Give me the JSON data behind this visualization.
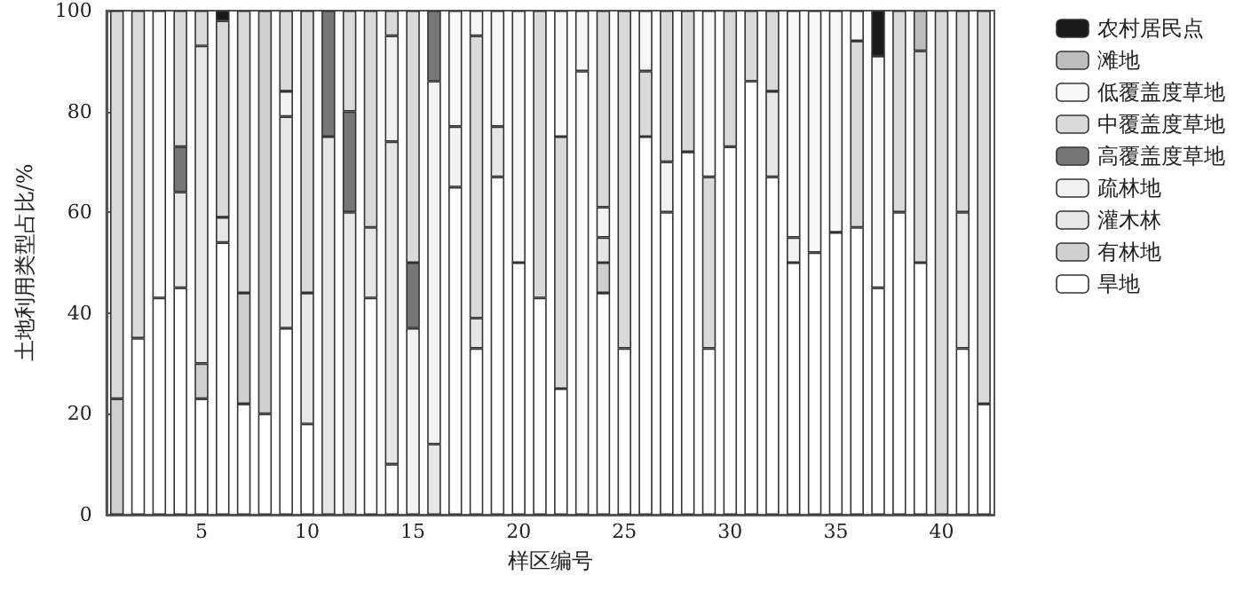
{
  "chart_data": {
    "type": "bar",
    "stacked": true,
    "xlabel": "样区编号",
    "ylabel": "土地利用类型占比/%",
    "ylim": [
      0,
      100
    ],
    "yticks": [
      0,
      20,
      40,
      60,
      80,
      100
    ],
    "grid": false,
    "legend": "right",
    "categories": [
      null,
      null,
      null,
      null,
      "5",
      null,
      null,
      null,
      null,
      "10",
      null,
      null,
      null,
      null,
      "15",
      null,
      null,
      null,
      null,
      "20",
      null,
      null,
      null,
      null,
      "25",
      null,
      null,
      null,
      null,
      "30",
      null,
      null,
      null,
      null,
      "35",
      null,
      null,
      null,
      null,
      "40",
      null,
      null
    ],
    "series": [
      {
        "name": "旱地",
        "color": "#ffffff",
        "values": [
          null,
          35,
          43,
          45,
          23,
          54,
          22,
          20,
          37,
          18,
          null,
          null,
          43,
          10,
          null,
          null,
          65,
          33,
          67,
          50,
          43,
          25,
          88,
          44,
          33,
          75,
          60,
          72,
          33,
          73,
          86,
          67,
          50,
          52,
          56,
          57,
          45,
          60,
          50,
          null,
          33,
          22
        ]
      },
      {
        "name": "有林地",
        "color": "#cfcfcf",
        "values": [
          23,
          null,
          null,
          null,
          7,
          null,
          22,
          80,
          null,
          null,
          null,
          null,
          null,
          null,
          null,
          null,
          null,
          null,
          null,
          null,
          null,
          null,
          null,
          6,
          null,
          null,
          null,
          null,
          null,
          null,
          null,
          null,
          null,
          null,
          null,
          null,
          null,
          null,
          null,
          null,
          null,
          null
        ]
      },
      {
        "name": "灌木林",
        "color": "#e6e6e6",
        "values": [
          null,
          null,
          null,
          19,
          63,
          5,
          null,
          null,
          42,
          26,
          75,
          60,
          14,
          64,
          null,
          14,
          null,
          6,
          10,
          null,
          null,
          null,
          null,
          5,
          null,
          null,
          null,
          null,
          null,
          null,
          null,
          17,
          null,
          null,
          null,
          null,
          null,
          null,
          null,
          null,
          27,
          null
        ]
      },
      {
        "name": "疏林地",
        "color": "#f2f2f2",
        "values": [
          null,
          null,
          null,
          null,
          null,
          null,
          null,
          null,
          5,
          null,
          null,
          null,
          null,
          21,
          37,
          72,
          12,
          null,
          null,
          null,
          null,
          null,
          null,
          6,
          null,
          null,
          10,
          null,
          null,
          null,
          null,
          null,
          5,
          null,
          null,
          null,
          null,
          null,
          null,
          null,
          null,
          null
        ]
      },
      {
        "name": "高覆盖度草地",
        "color": "#777777",
        "values": [
          null,
          null,
          null,
          9,
          null,
          null,
          null,
          null,
          null,
          null,
          25,
          20,
          null,
          null,
          13,
          14,
          null,
          null,
          null,
          null,
          null,
          null,
          null,
          null,
          null,
          null,
          null,
          null,
          null,
          null,
          null,
          null,
          null,
          null,
          null,
          null,
          null,
          null,
          null,
          null,
          null,
          null
        ]
      },
      {
        "name": "中覆盖度草地",
        "color": "#d9d9d9",
        "values": [
          77,
          65,
          null,
          27,
          7,
          39,
          56,
          null,
          16,
          56,
          null,
          20,
          43,
          5,
          50,
          null,
          null,
          56,
          null,
          null,
          57,
          50,
          null,
          39,
          67,
          13,
          30,
          28,
          34,
          27,
          14,
          16,
          null,
          null,
          null,
          37,
          null,
          40,
          42,
          100,
          40,
          78
        ]
      },
      {
        "name": "低覆盖度草地",
        "color": "#f7f7f7",
        "values": [
          null,
          null,
          57,
          null,
          null,
          null,
          null,
          null,
          null,
          null,
          null,
          null,
          null,
          null,
          null,
          null,
          23,
          5,
          23,
          50,
          null,
          25,
          12,
          null,
          null,
          12,
          null,
          null,
          33,
          null,
          null,
          null,
          45,
          48,
          44,
          6,
          46,
          null,
          null,
          null,
          null,
          null
        ]
      },
      {
        "name": "滩地",
        "color": "#bdbdbd",
        "values": [
          null,
          null,
          null,
          null,
          null,
          null,
          null,
          null,
          null,
          null,
          null,
          null,
          null,
          null,
          null,
          null,
          null,
          null,
          null,
          null,
          null,
          null,
          null,
          null,
          null,
          null,
          null,
          null,
          null,
          null,
          null,
          null,
          null,
          null,
          null,
          null,
          null,
          null,
          8,
          null,
          null,
          null
        ]
      },
      {
        "name": "农村居民点",
        "color": "#1a1a1a",
        "values": [
          null,
          null,
          null,
          null,
          null,
          2,
          null,
          null,
          null,
          null,
          null,
          null,
          null,
          null,
          null,
          null,
          null,
          null,
          null,
          null,
          null,
          null,
          null,
          null,
          null,
          null,
          null,
          null,
          null,
          null,
          null,
          null,
          null,
          null,
          null,
          null,
          9,
          null,
          null,
          null,
          null,
          null
        ]
      }
    ]
  }
}
